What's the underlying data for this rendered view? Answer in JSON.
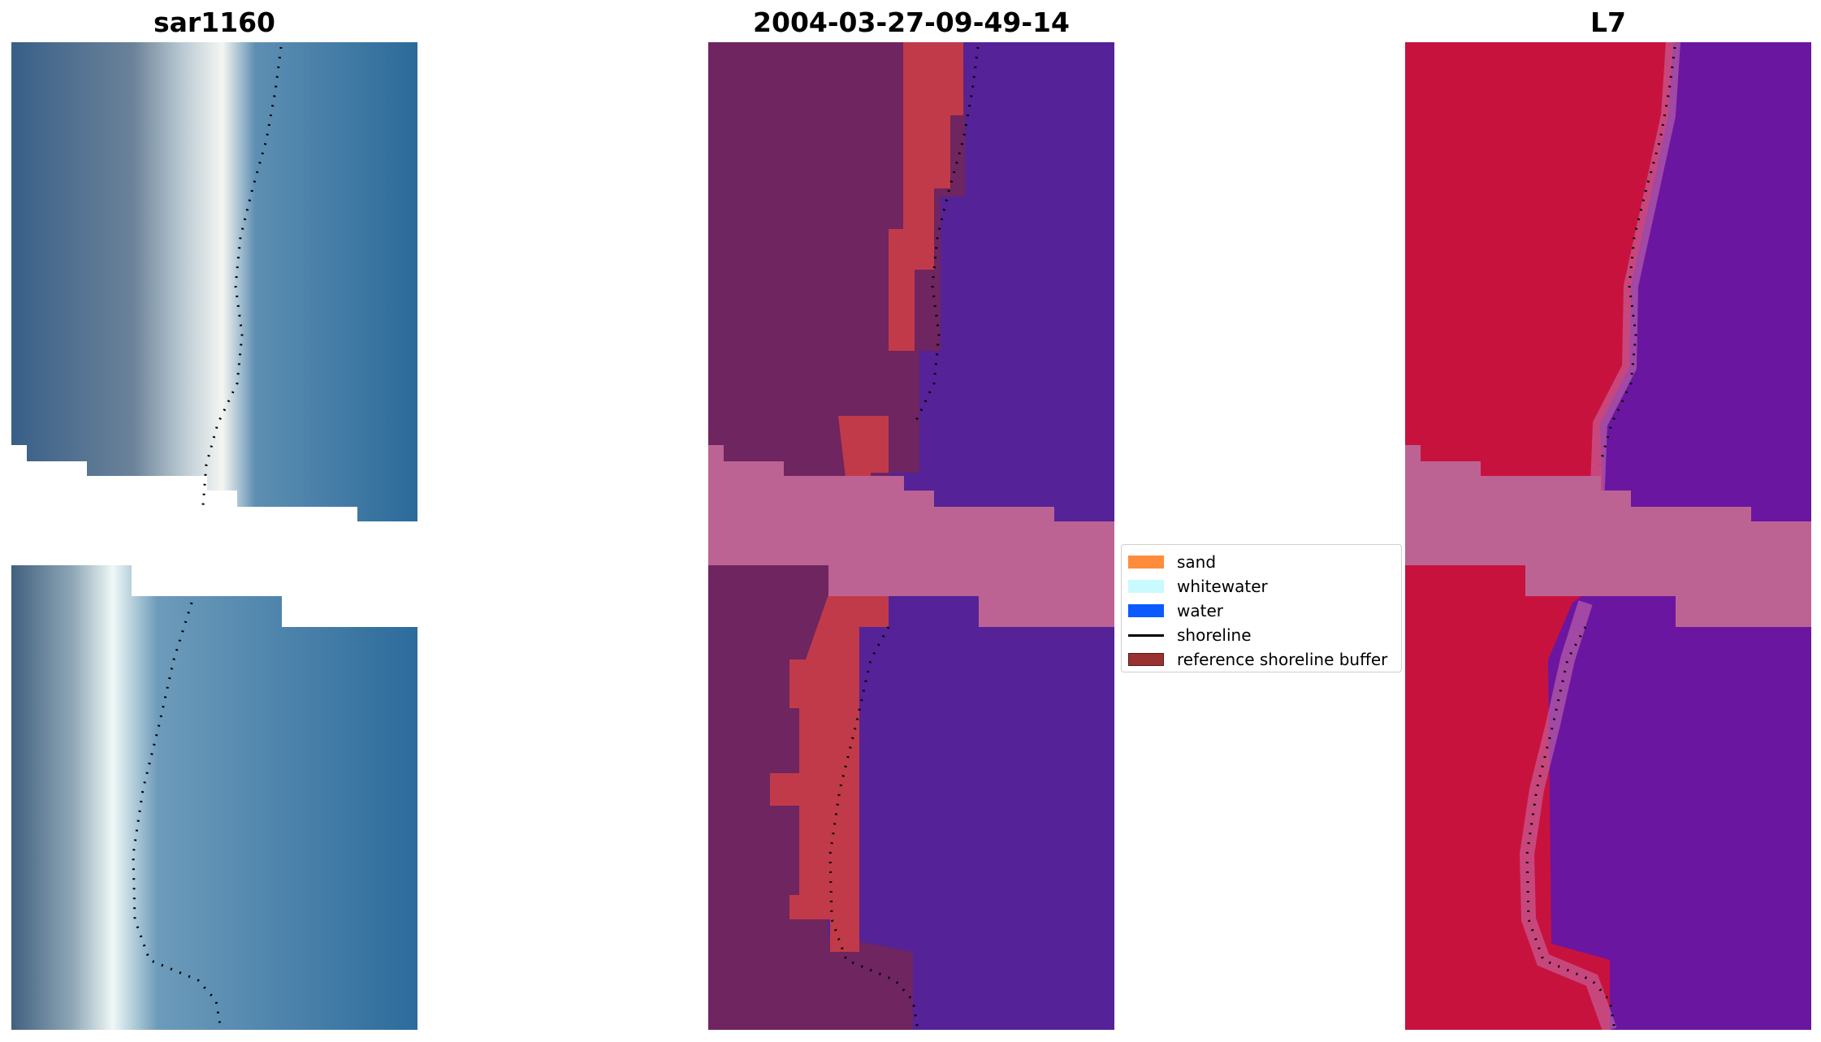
{
  "titles": {
    "left": "sar1160",
    "middle": "2004-03-27-09-49-14",
    "right": "L7"
  },
  "legend": {
    "items": [
      {
        "label": "sand",
        "color": "#ff8c3c",
        "kind": "patch"
      },
      {
        "label": "whitewater",
        "color": "#c8faff",
        "kind": "patch"
      },
      {
        "label": "water",
        "color": "#0a5aff",
        "kind": "patch"
      },
      {
        "label": "shoreline",
        "color": "#000000",
        "kind": "line"
      },
      {
        "label": "reference shoreline buffer",
        "color": "#9a3232",
        "kind": "patch"
      }
    ]
  },
  "colors": {
    "rgb_land": "#5b7894",
    "rgb_sand": "#f2f3f0",
    "rgb_water": "#2f6f9f",
    "class_land": "#6e2560",
    "class_buffer": "#c13a4a",
    "class_water": "#552297",
    "class_gap": "#bc6394",
    "index_land": "#c8123e",
    "index_water": "#6b16a0",
    "index_gap": "#bc6394"
  }
}
